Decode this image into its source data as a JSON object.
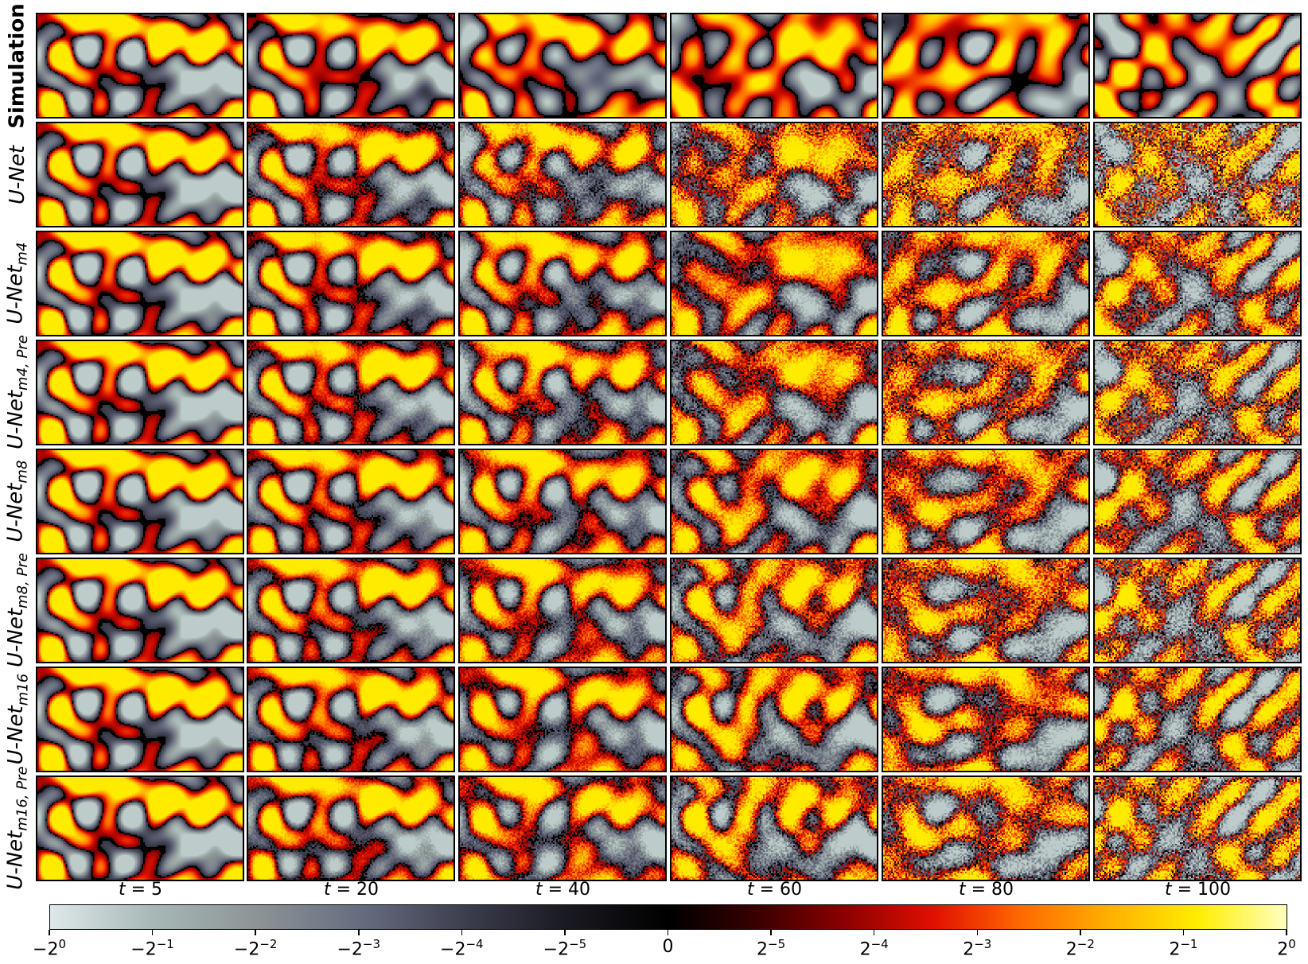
{
  "rows": [
    {
      "label": "Simulation",
      "sub": "",
      "bold": true
    },
    {
      "label": "U-Net",
      "sub": "",
      "bold": false
    },
    {
      "label": "U-Net",
      "sub": "m4",
      "bold": false
    },
    {
      "label": "U-Net",
      "sub": "m4, Pre",
      "bold": false
    },
    {
      "label": "U-Net",
      "sub": "m8",
      "bold": false
    },
    {
      "label": "U-Net",
      "sub": "m8, Pre",
      "bold": false
    },
    {
      "label": "U-Net",
      "sub": "m16",
      "bold": false
    },
    {
      "label": "U-Net",
      "sub": "m16, Pre",
      "bold": false
    }
  ],
  "columns": [
    {
      "var": "t",
      "value": "5"
    },
    {
      "var": "t",
      "value": "20"
    },
    {
      "var": "t",
      "value": "40"
    },
    {
      "var": "t",
      "value": "60"
    },
    {
      "var": "t",
      "value": "80"
    },
    {
      "var": "t",
      "value": "100"
    }
  ],
  "colorbar": {
    "ticks": [
      {
        "sign": "−",
        "exp": "0"
      },
      {
        "sign": "−",
        "exp": "−1"
      },
      {
        "sign": "−",
        "exp": "−2"
      },
      {
        "sign": "−",
        "exp": "−3"
      },
      {
        "sign": "−",
        "exp": "−4"
      },
      {
        "sign": "−",
        "exp": "−5"
      },
      {
        "zero": "0"
      },
      {
        "sign": "",
        "exp": "−5"
      },
      {
        "sign": "",
        "exp": "−4"
      },
      {
        "sign": "",
        "exp": "−3"
      },
      {
        "sign": "",
        "exp": "−2"
      },
      {
        "sign": "",
        "exp": "−1"
      },
      {
        "sign": "",
        "exp": "0"
      }
    ],
    "base": "2",
    "colors_negative": [
      "#dfe8e8",
      "#a7b8b7",
      "#8d9495",
      "#676d80",
      "#3e3f4f",
      "#1a1a22",
      "#000000"
    ],
    "colors_positive": [
      "#000000",
      "#3a0000",
      "#8c0000",
      "#e01000",
      "#ff6a00",
      "#ffb000",
      "#ffee00",
      "#ffffc0"
    ]
  }
}
